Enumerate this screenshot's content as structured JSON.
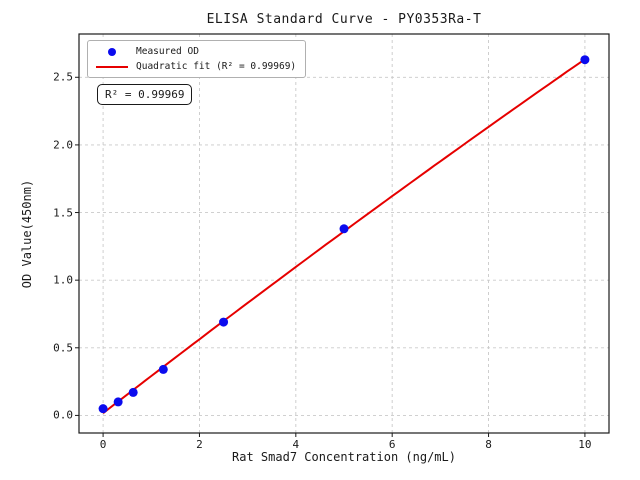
{
  "colors": {
    "dot": "#0b0bee",
    "line": "#e60000",
    "grid": "#c9c9c9",
    "spine": "#1a1a1a",
    "tick": "#1a1a1a"
  },
  "annotation": {
    "text": "R² = 0.99969"
  },
  "chart_data": {
    "type": "scatter",
    "title": "ELISA Standard Curve - PY0353Ra-T",
    "xlabel": "Rat Smad7 Concentration (ng/mL)",
    "ylabel": "OD Value(450nm)",
    "x": [
      0,
      0.3125,
      0.625,
      1.25,
      2.5,
      5,
      10
    ],
    "series": [
      {
        "name": "Measured OD",
        "type": "scatter",
        "values": [
          0.05,
          0.1,
          0.17,
          0.34,
          0.69,
          1.38,
          2.63
        ]
      },
      {
        "name": "Quadratic fit (R² = 0.99969)",
        "type": "line",
        "fit": "quadratic",
        "r_squared": 0.99969
      }
    ],
    "xticks": [
      0,
      2,
      4,
      6,
      8,
      10
    ],
    "yticks": [
      0.0,
      0.5,
      1.0,
      1.5,
      2.0,
      2.5
    ],
    "xlim": [
      -0.5,
      10.5
    ],
    "ylim": [
      -0.13,
      2.82
    ],
    "grid": true,
    "grid_style": "dashed",
    "legend_position": "upper left"
  }
}
